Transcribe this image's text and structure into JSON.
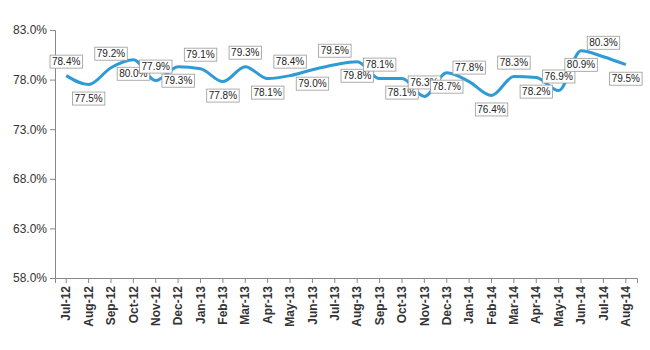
{
  "chart_data": {
    "type": "line",
    "categories": [
      "Jul-12",
      "Aug-12",
      "Sep-12",
      "Oct-12",
      "Nov-12",
      "Dec-12",
      "Jan-13",
      "Feb-13",
      "Mar-13",
      "Apr-13",
      "May-13",
      "Jun-13",
      "Jul-13",
      "Aug-13",
      "Sep-13",
      "Oct-13",
      "Nov-13",
      "Dec-13",
      "Jan-14",
      "Feb-14",
      "Mar-14",
      "Apr-14",
      "May-14",
      "Jun-14",
      "Jul-14",
      "Aug-14"
    ],
    "values": [
      78.4,
      77.5,
      79.2,
      80.0,
      77.9,
      79.3,
      79.1,
      77.8,
      79.3,
      78.1,
      78.4,
      79.0,
      79.5,
      79.8,
      78.1,
      78.1,
      76.3,
      78.7,
      77.8,
      76.4,
      78.3,
      78.2,
      76.9,
      80.9,
      80.3,
      79.5
    ],
    "value_labels": [
      "78.4%",
      "77.5%",
      "79.2%",
      "80.0%",
      "77.9%",
      "79.3%",
      "79.1%",
      "77.8%",
      "79.3%",
      "78.1%",
      "78.4%",
      "79.0%",
      "79.5%",
      "79.8%",
      "78.1%",
      "78.1%",
      "76.3%",
      "78.7%",
      "77.8%",
      "76.4%",
      "78.3%",
      "78.2%",
      "76.9%",
      "80.9%",
      "80.3%",
      "79.5%"
    ],
    "color": "#2e9bd6",
    "ylim": [
      58,
      83
    ],
    "yticks": [
      {
        "value": 58,
        "label": "58.0%"
      },
      {
        "value": 63,
        "label": "63.0%"
      },
      {
        "value": 68,
        "label": "68.0%"
      },
      {
        "value": 73,
        "label": "73.0%"
      },
      {
        "value": 78,
        "label": "78.0%"
      },
      {
        "value": 83,
        "label": "83.0%"
      }
    ],
    "grid": false,
    "data_labels": true
  }
}
